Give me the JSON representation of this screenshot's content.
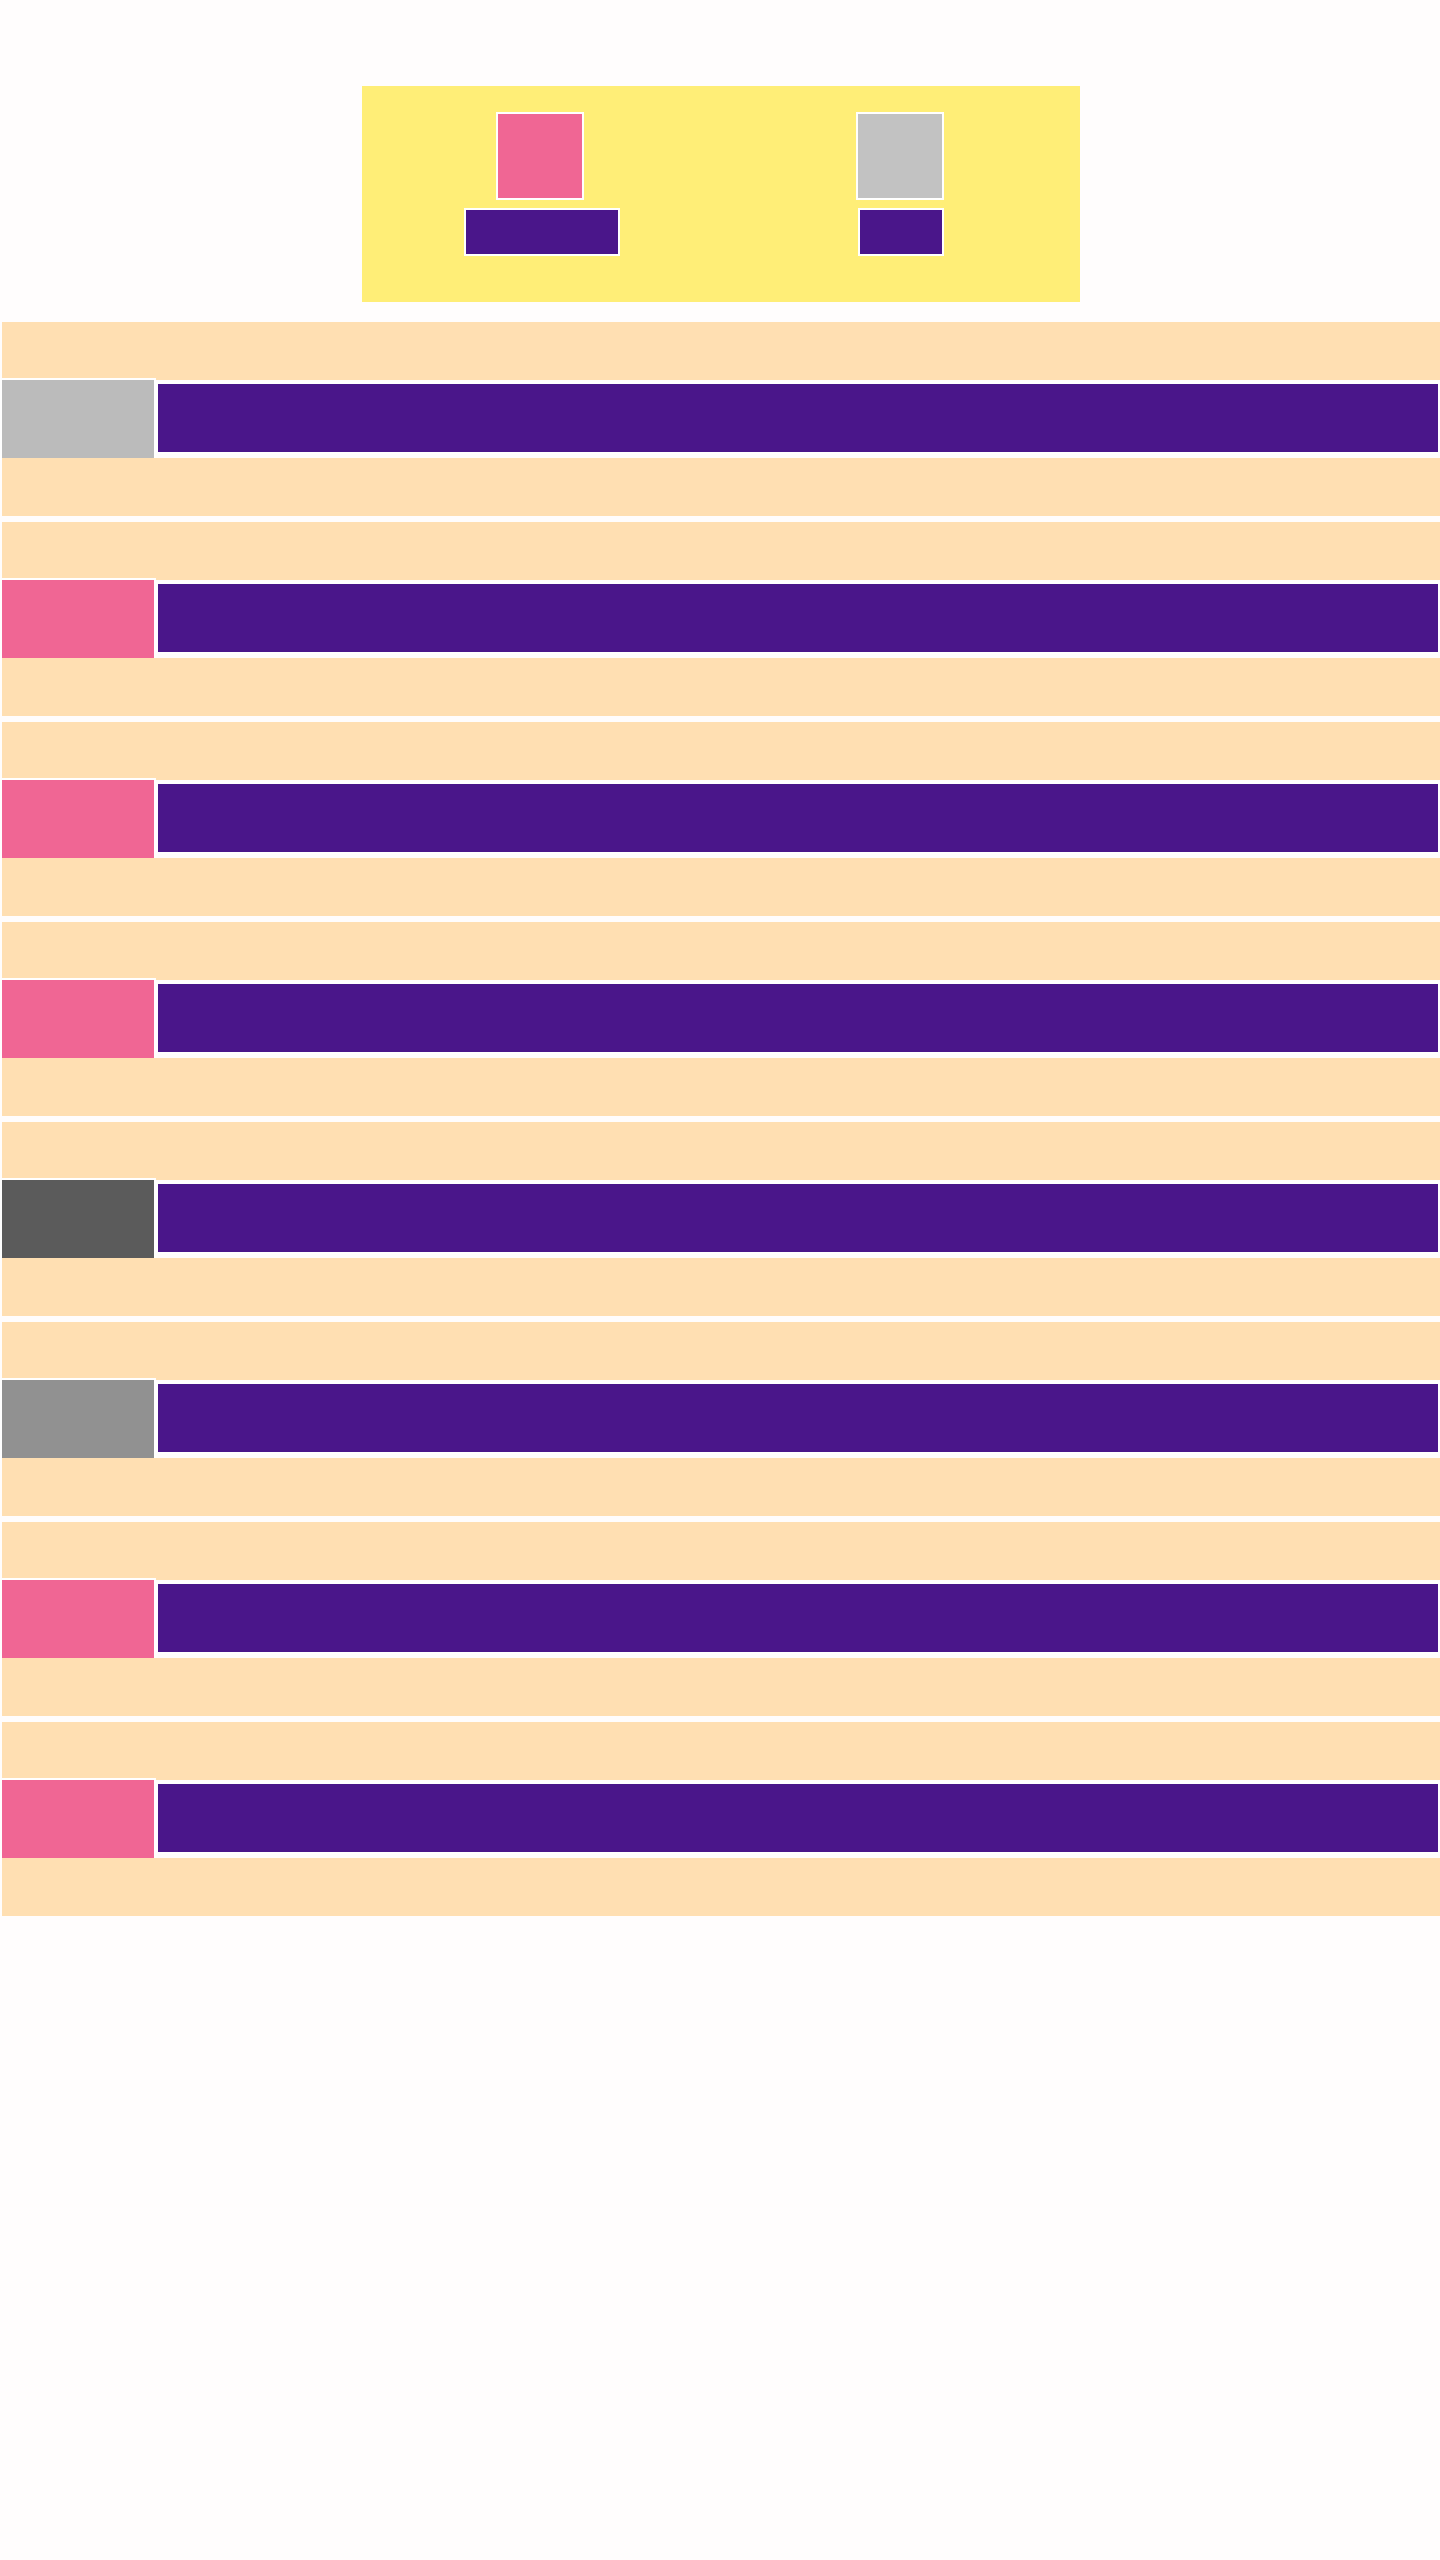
{
  "colors": {
    "background": "#fffdfd",
    "header_panel": "#ffee77",
    "row_band": "#ffdfb2",
    "bar": "#4a168a",
    "pink": "#f06694",
    "light_gray": "#bbbbbb",
    "dark_gray": "#5b5b5b",
    "mid_gray": "#919191",
    "divider": "#ffffff"
  },
  "header": {
    "tiles": [
      {
        "color": "#f06694"
      },
      {
        "color": "#c2c2c2"
      }
    ],
    "bars": [
      {
        "color": "#4a168a"
      },
      {
        "color": "#4a168a"
      }
    ]
  },
  "rows": [
    {
      "thumb_color": "#bbbbbb"
    },
    {
      "thumb_color": "#f06694"
    },
    {
      "thumb_color": "#f06694"
    },
    {
      "thumb_color": "#f06694"
    },
    {
      "thumb_color": "#5b5b5b"
    },
    {
      "thumb_color": "#919191"
    },
    {
      "thumb_color": "#f06694"
    },
    {
      "thumb_color": "#f06694"
    }
  ]
}
